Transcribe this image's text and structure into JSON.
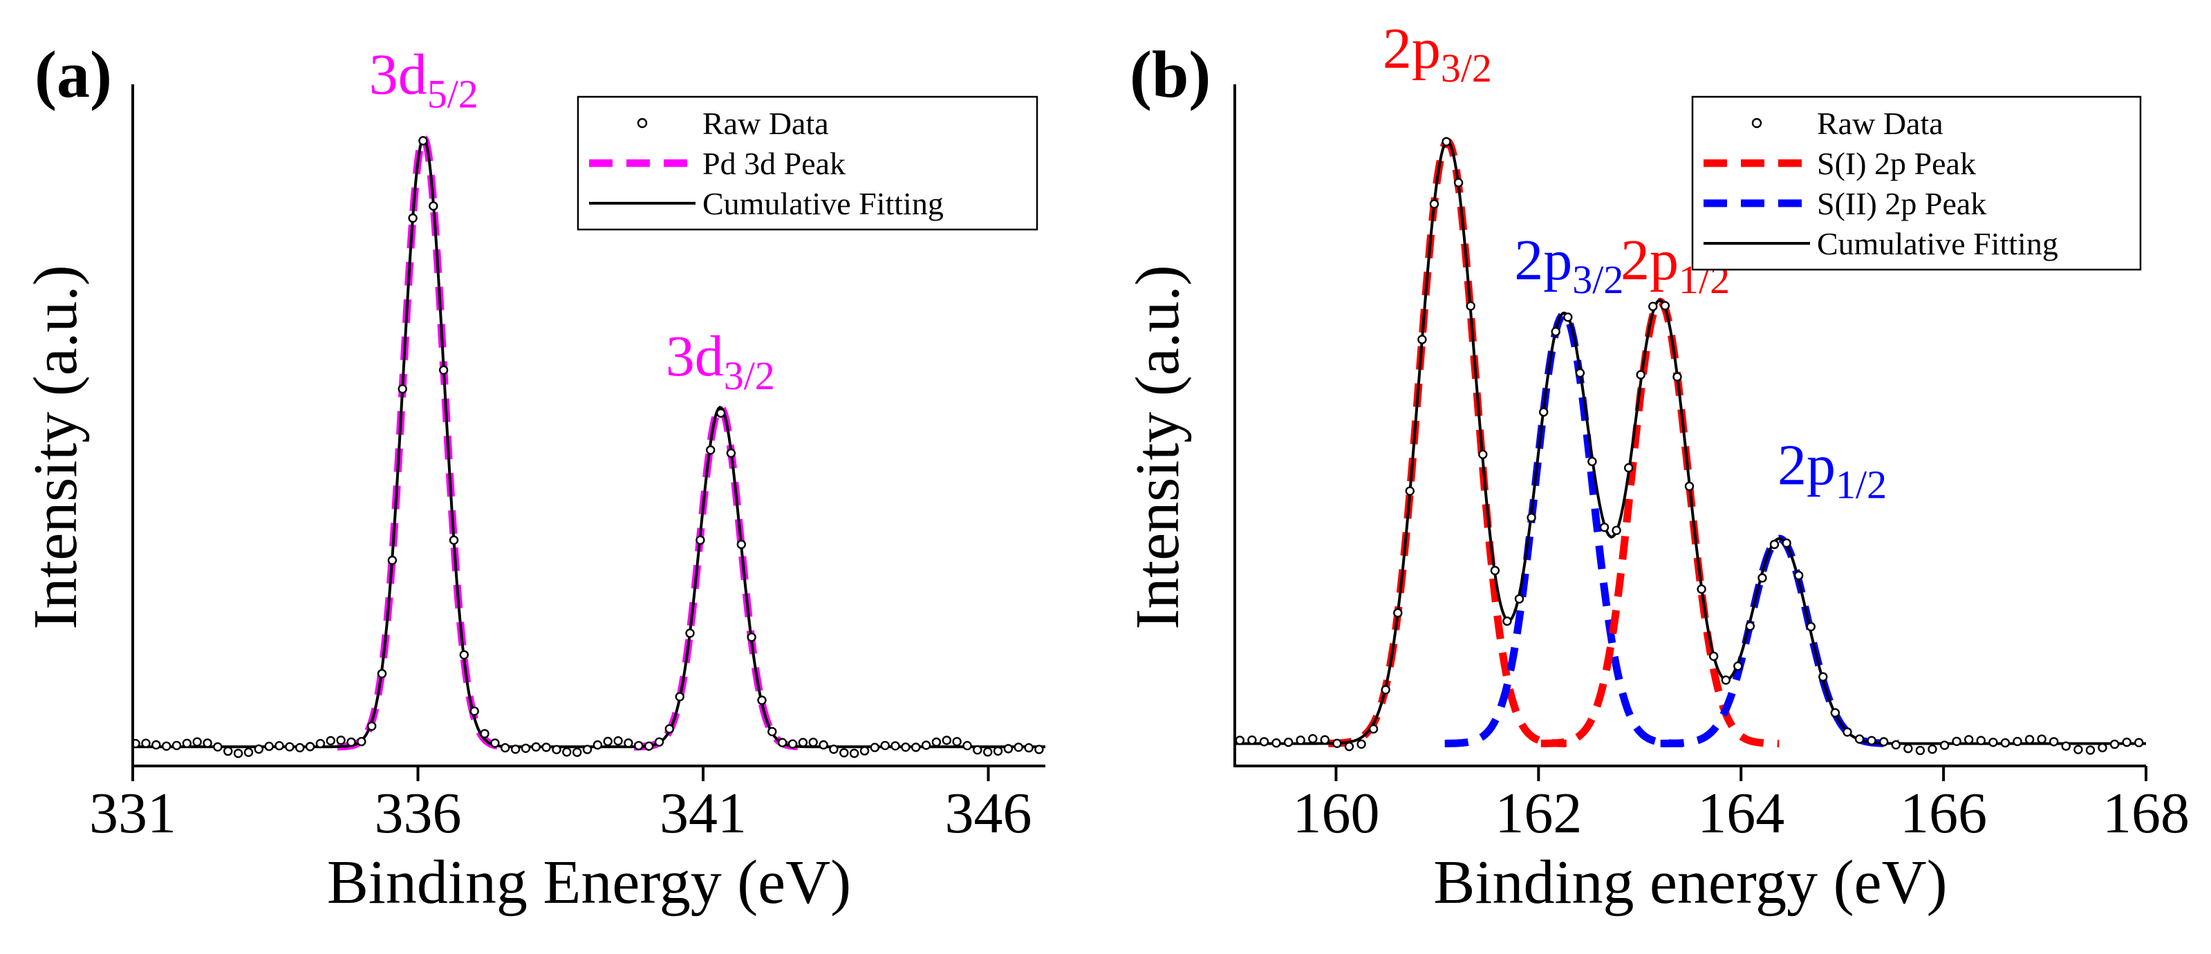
{
  "chart_data": [
    {
      "panel_label": "(a)",
      "type": "line",
      "xlabel": "Binding Energy (eV)",
      "ylabel": "Intensity (a.u.)",
      "xlim": [
        331,
        347
      ],
      "ylim": [
        0,
        1.06
      ],
      "xticks": [
        331,
        336,
        341,
        346
      ],
      "yticks_shown": false,
      "legend_position": "top-right",
      "legend": [
        {
          "label": "Raw Data",
          "style": "open-circle",
          "color": "#000000"
        },
        {
          "label": "Pd 3d Peak",
          "style": "dashed",
          "color": "#ff00ff"
        },
        {
          "label": "Cumulative Fitting",
          "style": "solid",
          "color": "#000000"
        }
      ],
      "baseline": 0.03,
      "peaks": [
        {
          "center": 336.1,
          "height": 0.95,
          "sigma": 0.36,
          "color": "#ff00ff"
        },
        {
          "center": 341.3,
          "height": 0.53,
          "sigma": 0.36,
          "color": "#ff00ff"
        }
      ],
      "annotations": [
        {
          "main": "3d",
          "sub": "5/2",
          "x": 336.1,
          "y": 1.05,
          "color": "#ff00ff"
        },
        {
          "main": "3d",
          "sub": "3/2",
          "x": 341.3,
          "y": 0.61,
          "color": "#ff00ff"
        }
      ],
      "raw_step": 0.18
    },
    {
      "panel_label": "(b)",
      "type": "line",
      "xlabel": "Binding energy (eV)",
      "ylabel": "Intensity (a.u.)",
      "xlim": [
        159,
        168
      ],
      "ylim": [
        0,
        1.06
      ],
      "xticks": [
        160,
        162,
        164,
        166,
        168
      ],
      "yticks_shown": false,
      "legend_position": "top-right",
      "legend": [
        {
          "label": "Raw Data",
          "style": "open-circle",
          "color": "#000000"
        },
        {
          "label": "S(I) 2p Peak",
          "style": "dashed",
          "color": "#ff0000"
        },
        {
          "label": "S(II) 2p Peak",
          "style": "dashed",
          "color": "#0000ff"
        },
        {
          "label": "Cumulative Fitting",
          "style": "solid",
          "color": "#000000"
        }
      ],
      "baseline": 0.035,
      "peaks": [
        {
          "center": 161.1,
          "height": 0.94,
          "sigma": 0.28,
          "color": "#ff0000"
        },
        {
          "center": 162.25,
          "height": 0.67,
          "sigma": 0.28,
          "color": "#0000ff"
        },
        {
          "center": 163.2,
          "height": 0.69,
          "sigma": 0.28,
          "color": "#ff0000"
        },
        {
          "center": 164.38,
          "height": 0.32,
          "sigma": 0.28,
          "color": "#0000ff"
        }
      ],
      "annotations": [
        {
          "main": "2p",
          "sub": "3/2",
          "x": 161.0,
          "y": 1.09,
          "color": "#ff0000"
        },
        {
          "main": "2p",
          "sub": "3/2",
          "x": 162.3,
          "y": 0.76,
          "color": "#0000ff"
        },
        {
          "main": "2p",
          "sub": "1/2",
          "x": 163.35,
          "y": 0.76,
          "color": "#ff0000"
        },
        {
          "main": "2p",
          "sub": "1/2",
          "x": 164.9,
          "y": 0.44,
          "color": "#0000ff"
        }
      ],
      "raw_step": 0.12
    }
  ]
}
